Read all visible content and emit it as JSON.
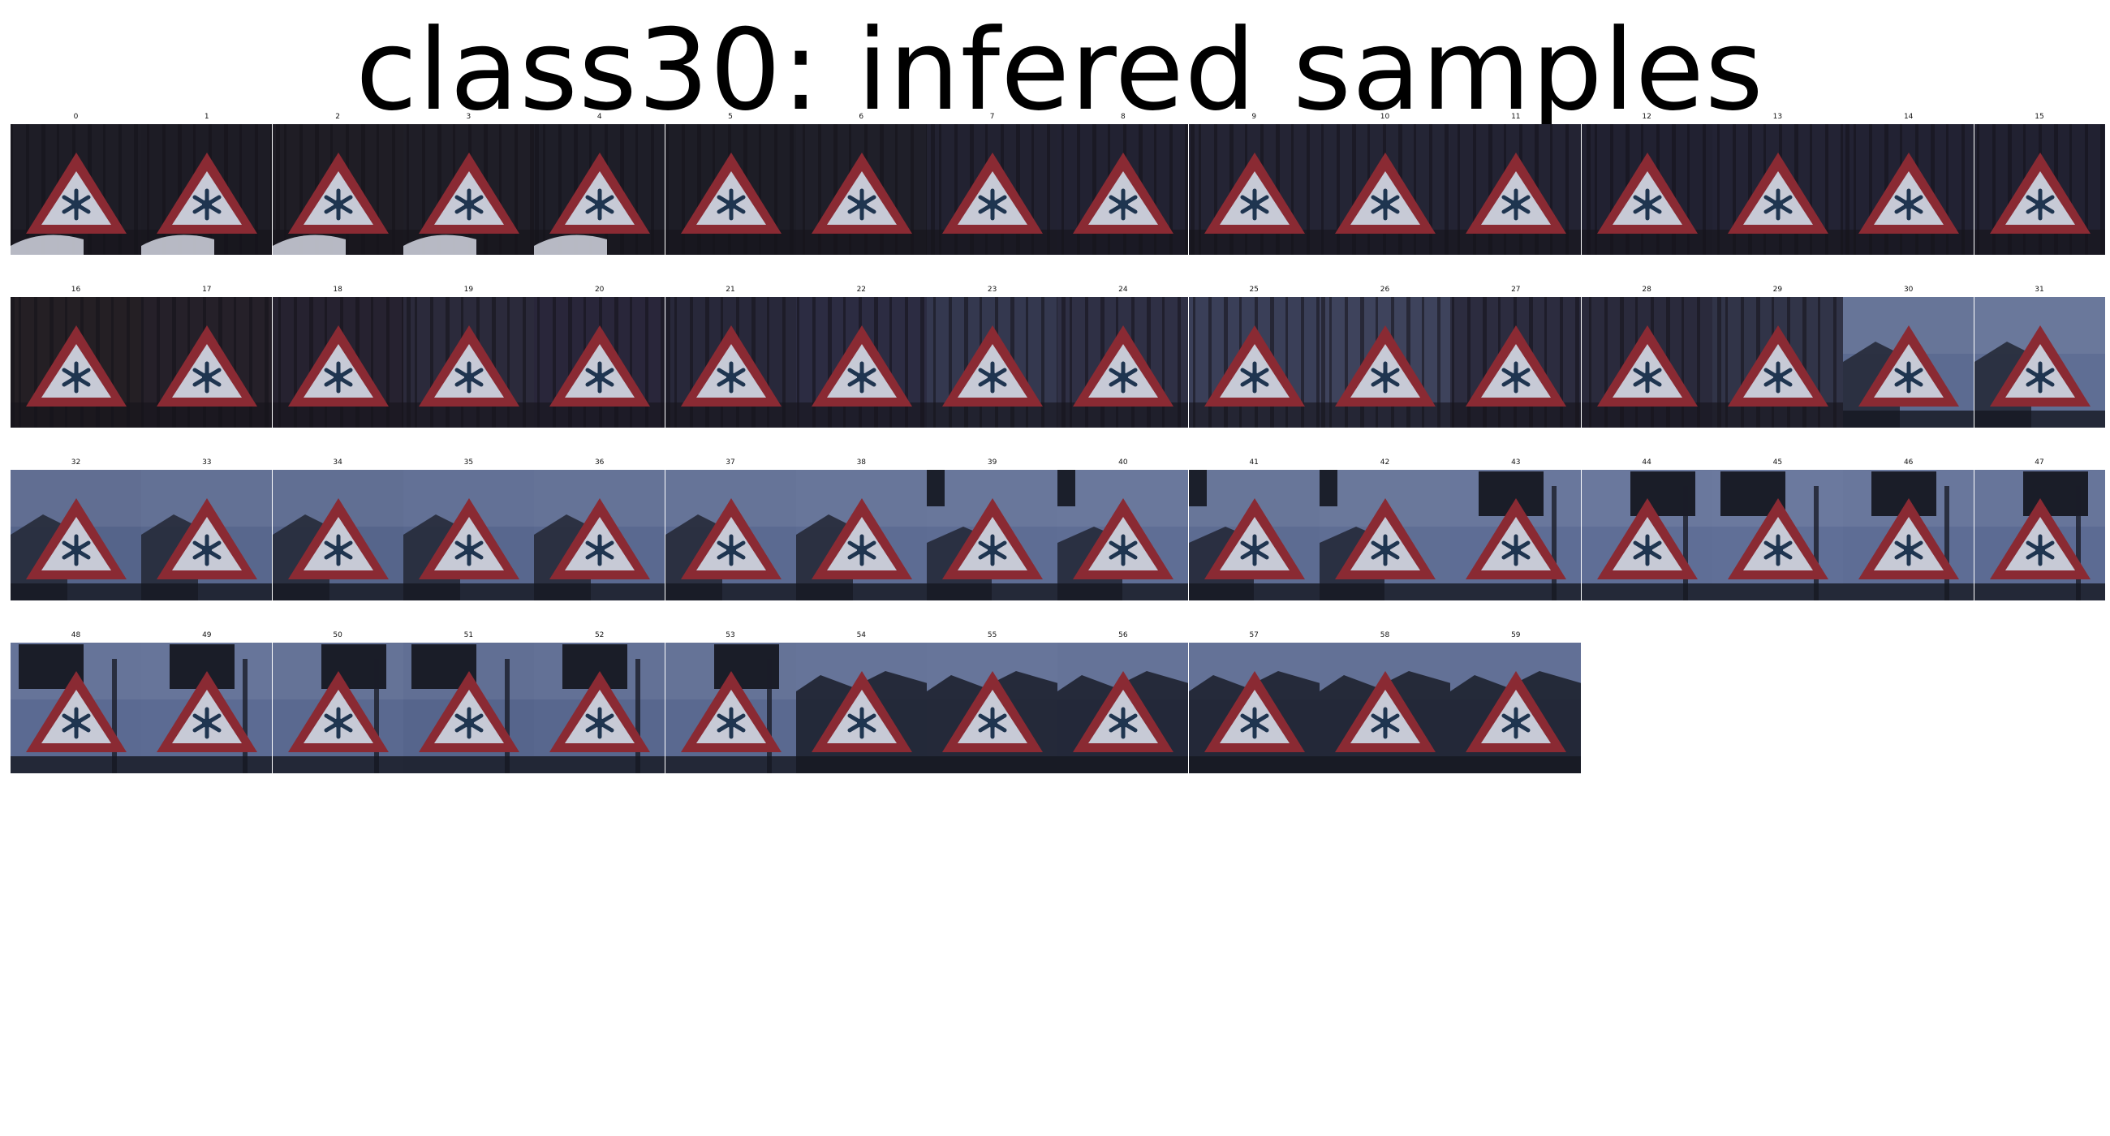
{
  "title": "class30: infered samples",
  "samples": [
    {
      "label": "0",
      "theme": "dark",
      "tint": "#1e1d26",
      "shape": "car"
    },
    {
      "label": "1",
      "theme": "dark",
      "tint": "#1d1c25",
      "shape": "car"
    },
    {
      "label": "2",
      "theme": "dark",
      "tint": "#1f1d25",
      "shape": "car"
    },
    {
      "label": "3",
      "theme": "dark",
      "tint": "#1f1e27",
      "shape": "car"
    },
    {
      "label": "4",
      "theme": "dark",
      "tint": "#1e1e28",
      "shape": "car"
    },
    {
      "label": "5",
      "theme": "dark",
      "tint": "#1d1d26",
      "shape": "none"
    },
    {
      "label": "6",
      "theme": "dark",
      "tint": "#1f1f29",
      "shape": "none"
    },
    {
      "label": "7",
      "theme": "dark",
      "tint": "#222231",
      "shape": "none"
    },
    {
      "label": "8",
      "theme": "dark",
      "tint": "#222232",
      "shape": "none"
    },
    {
      "label": "9",
      "theme": "dark",
      "tint": "#242434",
      "shape": "none"
    },
    {
      "label": "10",
      "theme": "dark",
      "tint": "#242535",
      "shape": "none"
    },
    {
      "label": "11",
      "theme": "dark",
      "tint": "#232333",
      "shape": "none"
    },
    {
      "label": "12",
      "theme": "dark",
      "tint": "#212131",
      "shape": "none"
    },
    {
      "label": "13",
      "theme": "dark",
      "tint": "#232334",
      "shape": "none"
    },
    {
      "label": "14",
      "theme": "dark",
      "tint": "#222233",
      "shape": "none"
    },
    {
      "label": "15",
      "theme": "dark",
      "tint": "#212131",
      "shape": "none"
    },
    {
      "label": "16",
      "theme": "dark",
      "tint": "#241f24",
      "shape": "none"
    },
    {
      "label": "17",
      "theme": "dark",
      "tint": "#252029",
      "shape": "none"
    },
    {
      "label": "18",
      "theme": "dark",
      "tint": "#262230",
      "shape": "none"
    },
    {
      "label": "19",
      "theme": "dark",
      "tint": "#2b2a3b",
      "shape": "none"
    },
    {
      "label": "20",
      "theme": "dark",
      "tint": "#29263a",
      "shape": "none"
    },
    {
      "label": "21",
      "theme": "dark",
      "tint": "#28283a",
      "shape": "none"
    },
    {
      "label": "22",
      "theme": "dark",
      "tint": "#2c2c42",
      "shape": "none"
    },
    {
      "label": "23",
      "theme": "dark",
      "tint": "#34384f",
      "shape": "none"
    },
    {
      "label": "24",
      "theme": "dark",
      "tint": "#2f3045",
      "shape": "none"
    },
    {
      "label": "25",
      "theme": "dark",
      "tint": "#3a3f58",
      "shape": "none"
    },
    {
      "label": "26",
      "theme": "dark",
      "tint": "#3e435c",
      "shape": "none"
    },
    {
      "label": "27",
      "theme": "dark",
      "tint": "#2c2c3f",
      "shape": "none"
    },
    {
      "label": "28",
      "theme": "dark",
      "tint": "#2a2a3c",
      "shape": "none"
    },
    {
      "label": "29",
      "theme": "dark",
      "tint": "#313448",
      "shape": "none"
    },
    {
      "label": "30",
      "theme": "sky",
      "tint": "#5c6b91",
      "shape": "roof"
    },
    {
      "label": "31",
      "theme": "sky",
      "tint": "#5f6e94",
      "shape": "roof"
    },
    {
      "label": "32",
      "theme": "sky",
      "tint": "#55648a",
      "shape": "roof"
    },
    {
      "label": "33",
      "theme": "sky",
      "tint": "#58678d",
      "shape": "roof"
    },
    {
      "label": "34",
      "theme": "sky",
      "tint": "#56658b",
      "shape": "roof"
    },
    {
      "label": "35",
      "theme": "sky",
      "tint": "#58678e",
      "shape": "roof"
    },
    {
      "label": "36",
      "theme": "sky",
      "tint": "#5a6990",
      "shape": "roof"
    },
    {
      "label": "37",
      "theme": "sky",
      "tint": "#5b6a91",
      "shape": "roof"
    },
    {
      "label": "38",
      "theme": "sky",
      "tint": "#5d6c93",
      "shape": "roof"
    },
    {
      "label": "39",
      "theme": "sky",
      "tint": "#5e6d94",
      "shape": "block"
    },
    {
      "label": "40",
      "theme": "sky",
      "tint": "#5f6e95",
      "shape": "block"
    },
    {
      "label": "41",
      "theme": "sky",
      "tint": "#5d6c92",
      "shape": "block"
    },
    {
      "label": "42",
      "theme": "sky",
      "tint": "#5f6e94",
      "shape": "block"
    },
    {
      "label": "43",
      "theme": "sky",
      "tint": "#5e6d95",
      "shape": "board"
    },
    {
      "label": "44",
      "theme": "sky",
      "tint": "#5f6e96",
      "shape": "board"
    },
    {
      "label": "45",
      "theme": "sky",
      "tint": "#606f97",
      "shape": "board"
    },
    {
      "label": "46",
      "theme": "sky",
      "tint": "#5e6d95",
      "shape": "board"
    },
    {
      "label": "47",
      "theme": "sky",
      "tint": "#5c6b93",
      "shape": "board"
    },
    {
      "label": "48",
      "theme": "sky",
      "tint": "#5b6a92",
      "shape": "board"
    },
    {
      "label": "49",
      "theme": "sky",
      "tint": "#5c6b93",
      "shape": "board"
    },
    {
      "label": "50",
      "theme": "sky",
      "tint": "#5a6990",
      "shape": "board"
    },
    {
      "label": "51",
      "theme": "sky",
      "tint": "#56658c",
      "shape": "board"
    },
    {
      "label": "52",
      "theme": "sky",
      "tint": "#58678e",
      "shape": "board"
    },
    {
      "label": "53",
      "theme": "sky",
      "tint": "#5a6990",
      "shape": "board"
    },
    {
      "label": "54",
      "theme": "sky",
      "tint": "#5b6a92",
      "shape": "trees"
    },
    {
      "label": "55",
      "theme": "sky",
      "tint": "#5c6b93",
      "shape": "trees"
    },
    {
      "label": "56",
      "theme": "sky",
      "tint": "#5a6991",
      "shape": "trees"
    },
    {
      "label": "57",
      "theme": "sky",
      "tint": "#596890",
      "shape": "trees"
    },
    {
      "label": "58",
      "theme": "sky",
      "tint": "#58678f",
      "shape": "trees"
    },
    {
      "label": "59",
      "theme": "sky",
      "tint": "#57668e",
      "shape": "trees"
    }
  ],
  "colors": {
    "sign_border": "#8a2a33",
    "sign_face": "#c7cad6",
    "symbol": "#1f3550",
    "dark_tree": "#14131a",
    "sky_ground": "#151821"
  }
}
